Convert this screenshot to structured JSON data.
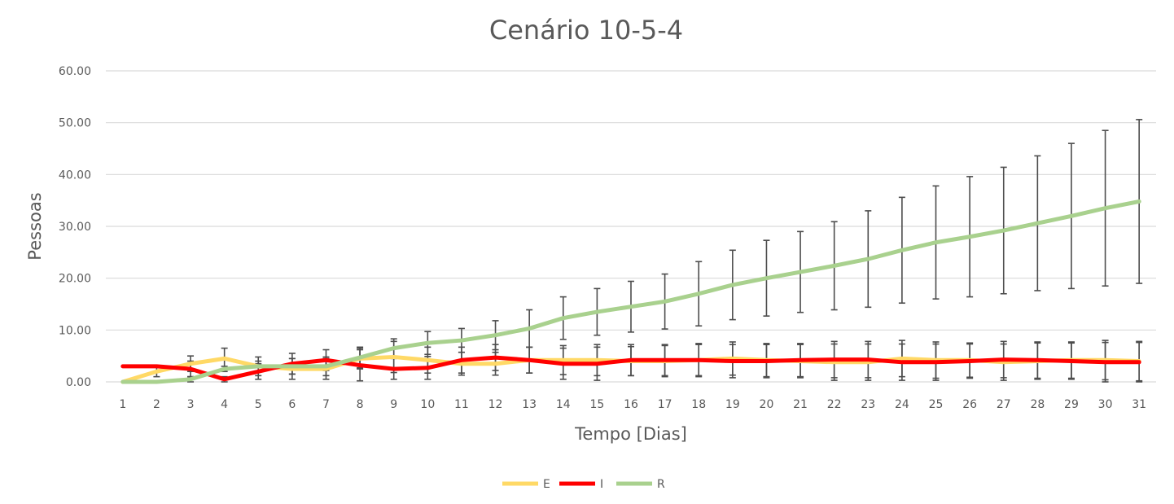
{
  "chart_data": {
    "type": "line",
    "title": "Cenário 10-5-4",
    "xlabel": "Tempo [Dias]",
    "ylabel": "Pessoas",
    "categories": [
      "1",
      "2",
      "3",
      "4",
      "5",
      "6",
      "7",
      "8",
      "9",
      "10",
      "11",
      "12",
      "13",
      "14",
      "15",
      "16",
      "17",
      "18",
      "19",
      "20",
      "21",
      "22",
      "23",
      "24",
      "25",
      "26",
      "27",
      "28",
      "29",
      "30",
      "31"
    ],
    "ylim": [
      0,
      60
    ],
    "yticks": [
      "0.00",
      "10.00",
      "20.00",
      "30.00",
      "40.00",
      "50.00",
      "60.00"
    ],
    "grid": true,
    "legend_position": "bottom",
    "series": [
      {
        "name": "E",
        "color": "#FFD966",
        "values": [
          0.0,
          2.0,
          3.5,
          4.5,
          3.0,
          2.5,
          2.5,
          4.5,
          4.8,
          4.2,
          3.5,
          3.5,
          4.2,
          4.2,
          4.2,
          4.0,
          4.0,
          4.2,
          4.5,
          4.2,
          4.0,
          3.8,
          3.8,
          4.5,
          4.2,
          4.2,
          3.8,
          4.0,
          4.2,
          4.2,
          4.0
        ],
        "error": [
          0.0,
          1.0,
          1.5,
          2.0,
          1.8,
          2.0,
          2.0,
          2.0,
          3.0,
          2.5,
          2.2,
          2.2,
          2.5,
          2.8,
          3.0,
          2.8,
          3.0,
          3.0,
          3.2,
          3.2,
          3.2,
          3.5,
          3.5,
          3.5,
          3.5,
          3.3,
          3.5,
          3.5,
          3.5,
          3.8,
          3.8
        ]
      },
      {
        "name": "I",
        "color": "#FF0000",
        "values": [
          3.0,
          3.0,
          2.5,
          0.5,
          2.0,
          3.5,
          4.2,
          3.2,
          2.5,
          2.7,
          4.2,
          4.7,
          4.2,
          3.5,
          3.5,
          4.2,
          4.2,
          4.2,
          4.0,
          4.0,
          4.2,
          4.3,
          4.3,
          3.8,
          3.8,
          4.0,
          4.3,
          4.2,
          4.0,
          3.8,
          3.8
        ],
        "error": [
          0.0,
          0.0,
          1.5,
          0.5,
          1.5,
          2.0,
          2.0,
          3.0,
          2.0,
          2.2,
          2.5,
          2.5,
          2.5,
          3.0,
          3.2,
          3.0,
          3.0,
          3.2,
          3.2,
          3.2,
          3.2,
          3.5,
          3.5,
          3.5,
          3.5,
          3.3,
          3.5,
          3.5,
          3.5,
          3.8,
          3.8
        ]
      },
      {
        "name": "R",
        "color": "#A9D18E",
        "values": [
          0.0,
          0.0,
          0.5,
          2.5,
          3.0,
          3.0,
          3.0,
          4.7,
          6.5,
          7.5,
          8.0,
          9.0,
          10.3,
          12.3,
          13.5,
          14.5,
          15.5,
          17.0,
          18.7,
          20.0,
          21.2,
          22.4,
          23.7,
          25.4,
          26.9,
          28.0,
          29.2,
          30.6,
          32.0,
          33.5,
          34.8
        ],
        "error": [
          0.0,
          0.0,
          0.5,
          0.5,
          1.0,
          1.5,
          1.8,
          2.0,
          1.8,
          2.2,
          2.3,
          2.8,
          3.6,
          4.1,
          4.5,
          4.9,
          5.3,
          6.2,
          6.7,
          7.3,
          7.8,
          8.5,
          9.3,
          10.2,
          10.9,
          11.6,
          12.2,
          13.0,
          14.0,
          15.0,
          15.8
        ]
      }
    ]
  }
}
